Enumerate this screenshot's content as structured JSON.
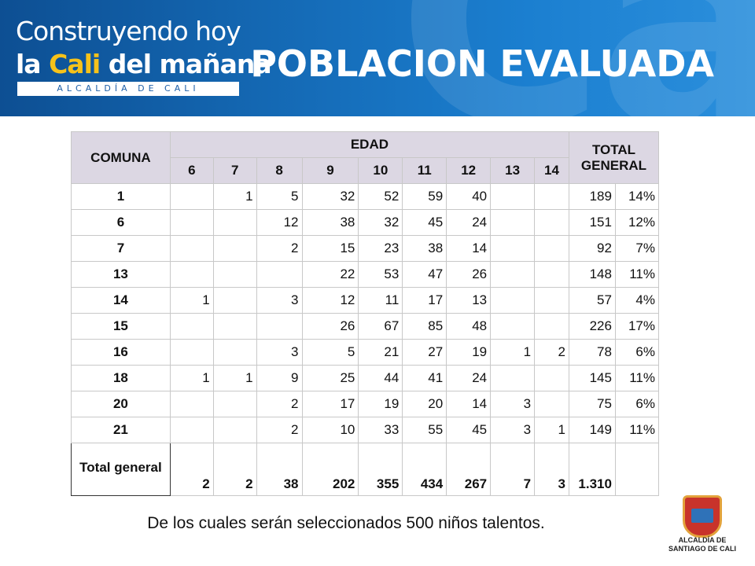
{
  "header": {
    "logo_line1": "Construyendo hoy",
    "logo_line2_pre": "la ",
    "logo_line2_cali": "Cali",
    "logo_line2_post": " del mañana",
    "logo_subtitle": "ALCALDÍA DE CALI",
    "title": "POBLACION EVALUADA",
    "watermark": "Cali"
  },
  "table": {
    "col_comuna": "COMUNA",
    "col_edad": "EDAD",
    "col_total": "TOTAL GENERAL",
    "ages": [
      "6",
      "7",
      "8",
      "9",
      "10",
      "11",
      "12",
      "13",
      "14"
    ],
    "rows": [
      {
        "comuna": "1",
        "cells": [
          "",
          "1",
          "5",
          "32",
          "52",
          "59",
          "40",
          "",
          ""
        ],
        "total": "189",
        "pct": "14%"
      },
      {
        "comuna": "6",
        "cells": [
          "",
          "",
          "12",
          "38",
          "32",
          "45",
          "24",
          "",
          ""
        ],
        "total": "151",
        "pct": "12%"
      },
      {
        "comuna": "7",
        "cells": [
          "",
          "",
          "2",
          "15",
          "23",
          "38",
          "14",
          "",
          ""
        ],
        "total": "92",
        "pct": "7%"
      },
      {
        "comuna": "13",
        "cells": [
          "",
          "",
          "",
          "22",
          "53",
          "47",
          "26",
          "",
          ""
        ],
        "total": "148",
        "pct": "11%"
      },
      {
        "comuna": "14",
        "cells": [
          "1",
          "",
          "3",
          "12",
          "11",
          "17",
          "13",
          "",
          ""
        ],
        "total": "57",
        "pct": "4%"
      },
      {
        "comuna": "15",
        "cells": [
          "",
          "",
          "",
          "26",
          "67",
          "85",
          "48",
          "",
          ""
        ],
        "total": "226",
        "pct": "17%"
      },
      {
        "comuna": "16",
        "cells": [
          "",
          "",
          "3",
          "5",
          "21",
          "27",
          "19",
          "1",
          "2"
        ],
        "total": "78",
        "pct": "6%"
      },
      {
        "comuna": "18",
        "cells": [
          "1",
          "1",
          "9",
          "25",
          "44",
          "41",
          "24",
          "",
          ""
        ],
        "total": "145",
        "pct": "11%"
      },
      {
        "comuna": "20",
        "cells": [
          "",
          "",
          "2",
          "17",
          "19",
          "20",
          "14",
          "3",
          ""
        ],
        "total": "75",
        "pct": "6%"
      },
      {
        "comuna": "21",
        "cells": [
          "",
          "",
          "2",
          "10",
          "33",
          "55",
          "45",
          "3",
          "1"
        ],
        "total": "149",
        "pct": "11%"
      }
    ],
    "total_row": {
      "label": "Total general",
      "cells": [
        "2",
        "2",
        "38",
        "202",
        "355",
        "434",
        "267",
        "7",
        "3"
      ],
      "total": "1.310"
    }
  },
  "footnote": "De los cuales serán seleccionados 500 niños talentos.",
  "seal": {
    "line1": "ALCALDÍA DE",
    "line2": "SANTIAGO DE CALI"
  }
}
